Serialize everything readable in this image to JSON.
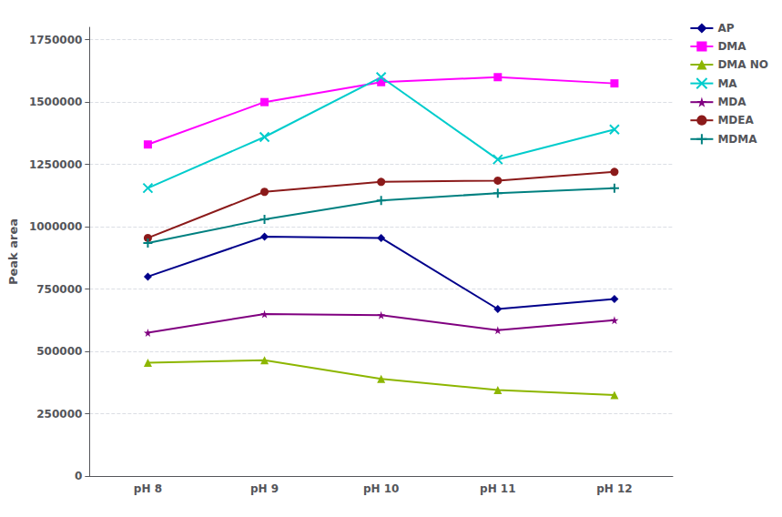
{
  "chart_data": {
    "type": "line",
    "categories": [
      "pH 8",
      "pH 9",
      "pH 10",
      "pH 11",
      "pH 12"
    ],
    "ylabel": "Peak area",
    "series": [
      {
        "name": "AP",
        "color": "#00008B",
        "marker": "diamond",
        "values": [
          800000,
          960000,
          955000,
          670000,
          710000
        ]
      },
      {
        "name": "DMA",
        "color": "#FF00FF",
        "marker": "square",
        "values": [
          1330000,
          1500000,
          1580000,
          1600000,
          1575000
        ]
      },
      {
        "name": "DMA NO",
        "color": "#8DB600",
        "marker": "triangle",
        "values": [
          455000,
          465000,
          390000,
          345000,
          325000
        ]
      },
      {
        "name": "MA",
        "color": "#00CCCC",
        "marker": "x",
        "values": [
          1155000,
          1360000,
          1600000,
          1270000,
          1390000
        ]
      },
      {
        "name": "MDA",
        "color": "#800080",
        "marker": "star",
        "values": [
          575000,
          650000,
          645000,
          585000,
          625000
        ]
      },
      {
        "name": "MDEA",
        "color": "#8B1A1A",
        "marker": "circle",
        "values": [
          955000,
          1140000,
          1180000,
          1185000,
          1220000
        ]
      },
      {
        "name": "MDMA",
        "color": "#008080",
        "marker": "plus",
        "values": [
          935000,
          1030000,
          1105000,
          1135000,
          1155000
        ]
      }
    ],
    "ylim": [
      0,
      1800000
    ],
    "yticks": [
      0,
      250000,
      500000,
      750000,
      1000000,
      1250000,
      1500000,
      1750000
    ],
    "grid": true,
    "legend": "upper right"
  }
}
